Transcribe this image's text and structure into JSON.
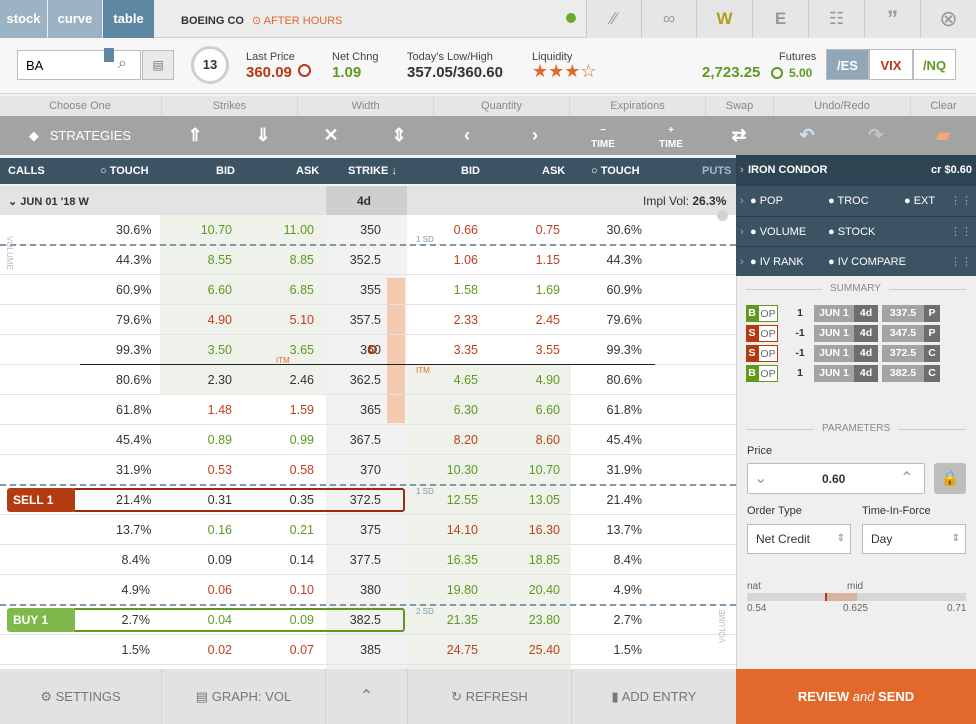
{
  "tabs": {
    "stock": "stock",
    "curve": "curve",
    "table": "table"
  },
  "symbol": {
    "name": "BOEING CO",
    "session": "AFTER HOURS"
  },
  "toolbar_icons": {
    "w": "W",
    "e": "E"
  },
  "quote": {
    "search_value": "BA",
    "dte": "13",
    "last_label": "Last Price",
    "last": "360.09",
    "chg_label": "Net Chng",
    "chg": "1.09",
    "lh_label": "Today's Low/High",
    "lh": "357.05/360.60",
    "liq_label": "Liquidity",
    "liq_stars": "★★★☆",
    "fut_label": "Futures",
    "fut": "2,723.25",
    "fut_chg": "5.00",
    "fut_btns": [
      "/ES",
      "VIX",
      "/NQ"
    ]
  },
  "categories": [
    "Choose One",
    "Strikes",
    "Width",
    "Quantity",
    "Expirations",
    "Swap",
    "Undo/Redo",
    "Clear"
  ],
  "strategies_label": "STRATEGIES",
  "time_label": "TIME",
  "headers": {
    "calls": "CALLS",
    "touch": "TOUCH",
    "bid": "BID",
    "ask": "ASK",
    "strike": "STRIKE",
    "bid2": "BID",
    "ask2": "ASK",
    "touch2": "TOUCH",
    "puts": "PUTS"
  },
  "expiry": {
    "label": "JUN 01 '18 W",
    "dte": "4d",
    "iv_label": "Impl Vol:",
    "iv": "26.3%"
  },
  "markers": {
    "sd1": "1 SD",
    "sd2": "2 SD",
    "itm": "ITM",
    "volume": "VOLUME",
    "sell": "SELL 1",
    "buy": "BUY 1"
  },
  "rows": [
    {
      "ct": "30.6%",
      "cb": "10.70",
      "ca": "11.00",
      "k": "350",
      "pb": "0.66",
      "pa": "0.75",
      "pt": "30.6%",
      "cc": "g",
      "pc": "r"
    },
    {
      "ct": "44.3%",
      "cb": "8.55",
      "ca": "8.85",
      "k": "352.5",
      "pb": "1.06",
      "pa": "1.15",
      "pt": "44.3%",
      "cc": "g",
      "pc": "r"
    },
    {
      "ct": "60.9%",
      "cb": "6.60",
      "ca": "6.85",
      "k": "355",
      "pb": "1.58",
      "pa": "1.69",
      "pt": "60.9%",
      "cc": "g",
      "pc": "g"
    },
    {
      "ct": "79.6%",
      "cb": "4.90",
      "ca": "5.10",
      "k": "357.5",
      "pb": "2.33",
      "pa": "2.45",
      "pt": "79.6%",
      "cc": "r",
      "pc": "r"
    },
    {
      "ct": "99.3%",
      "cb": "3.50",
      "ca": "3.65",
      "k": "360",
      "pb": "3.35",
      "pa": "3.55",
      "pt": "99.3%",
      "cc": "g",
      "pc": "r"
    },
    {
      "ct": "80.6%",
      "cb": "2.30",
      "ca": "2.46",
      "k": "362.5",
      "pb": "4.65",
      "pa": "4.90",
      "pt": "80.6%",
      "cc": "k",
      "pc": "g"
    },
    {
      "ct": "61.8%",
      "cb": "1.48",
      "ca": "1.59",
      "k": "365",
      "pb": "6.30",
      "pa": "6.60",
      "pt": "61.8%",
      "cc": "r",
      "pc": "g"
    },
    {
      "ct": "45.4%",
      "cb": "0.89",
      "ca": "0.99",
      "k": "367.5",
      "pb": "8.20",
      "pa": "8.60",
      "pt": "45.4%",
      "cc": "g",
      "pc": "r"
    },
    {
      "ct": "31.9%",
      "cb": "0.53",
      "ca": "0.58",
      "k": "370",
      "pb": "10.30",
      "pa": "10.70",
      "pt": "31.9%",
      "cc": "r",
      "pc": "g"
    },
    {
      "ct": "21.4%",
      "cb": "0.31",
      "ca": "0.35",
      "k": "372.5",
      "pb": "12.55",
      "pa": "13.05",
      "pt": "21.4%",
      "cc": "k",
      "pc": "g"
    },
    {
      "ct": "13.7%",
      "cb": "0.16",
      "ca": "0.21",
      "k": "375",
      "pb": "14.10",
      "pa": "16.30",
      "pt": "13.7%",
      "cc": "g",
      "pc": "r"
    },
    {
      "ct": "8.4%",
      "cb": "0.09",
      "ca": "0.14",
      "k": "377.5",
      "pb": "16.35",
      "pa": "18.85",
      "pt": "8.4%",
      "cc": "k",
      "pc": "g"
    },
    {
      "ct": "4.9%",
      "cb": "0.06",
      "ca": "0.10",
      "k": "380",
      "pb": "19.80",
      "pa": "20.40",
      "pt": "4.9%",
      "cc": "r",
      "pc": "g"
    },
    {
      "ct": "2.7%",
      "cb": "0.04",
      "ca": "0.09",
      "k": "382.5",
      "pb": "21.35",
      "pa": "23.80",
      "pt": "2.7%",
      "cc": "g",
      "pc": "g"
    },
    {
      "ct": "1.5%",
      "cb": "0.02",
      "ca": "0.07",
      "k": "385",
      "pb": "24.75",
      "pa": "25.40",
      "pt": "1.5%",
      "cc": "r",
      "pc": "r"
    }
  ],
  "sidebar": {
    "strategy": "IRON CONDOR",
    "price": "cr $0.60",
    "rows": [
      [
        "POP",
        "TROC",
        "EXT"
      ],
      [
        "VOLUME",
        "STOCK"
      ],
      [
        "IV RANK",
        "IV COMPARE"
      ]
    ],
    "summary_label": "SUMMARY",
    "legs": [
      {
        "side": "B",
        "op": "OP",
        "qty": "1",
        "exp": "JUN 1",
        "dte": "4d",
        "strike": "337.5",
        "type": "P"
      },
      {
        "side": "S",
        "op": "OP",
        "qty": "-1",
        "exp": "JUN 1",
        "dte": "4d",
        "strike": "347.5",
        "type": "P"
      },
      {
        "side": "S",
        "op": "OP",
        "qty": "-1",
        "exp": "JUN 1",
        "dte": "4d",
        "strike": "372.5",
        "type": "C"
      },
      {
        "side": "B",
        "op": "OP",
        "qty": "1",
        "exp": "JUN 1",
        "dte": "4d",
        "strike": "382.5",
        "type": "C"
      }
    ],
    "params_label": "PARAMETERS",
    "price_label": "Price",
    "price_value": "0.60",
    "order_type_label": "Order Type",
    "order_type": "Net Credit",
    "tif_label": "Time-In-Force",
    "tif": "Day",
    "nat_label": "nat",
    "mid_label": "mid",
    "nat": "0.54",
    "mid": "0.625",
    "far": "0.71"
  },
  "bottom": {
    "settings": "SETTINGS",
    "graph": "GRAPH: VOL",
    "refresh": "REFRESH",
    "add": "ADD ENTRY",
    "review_a": "REVIEW ",
    "review_b": "and",
    "review_c": " SEND"
  }
}
